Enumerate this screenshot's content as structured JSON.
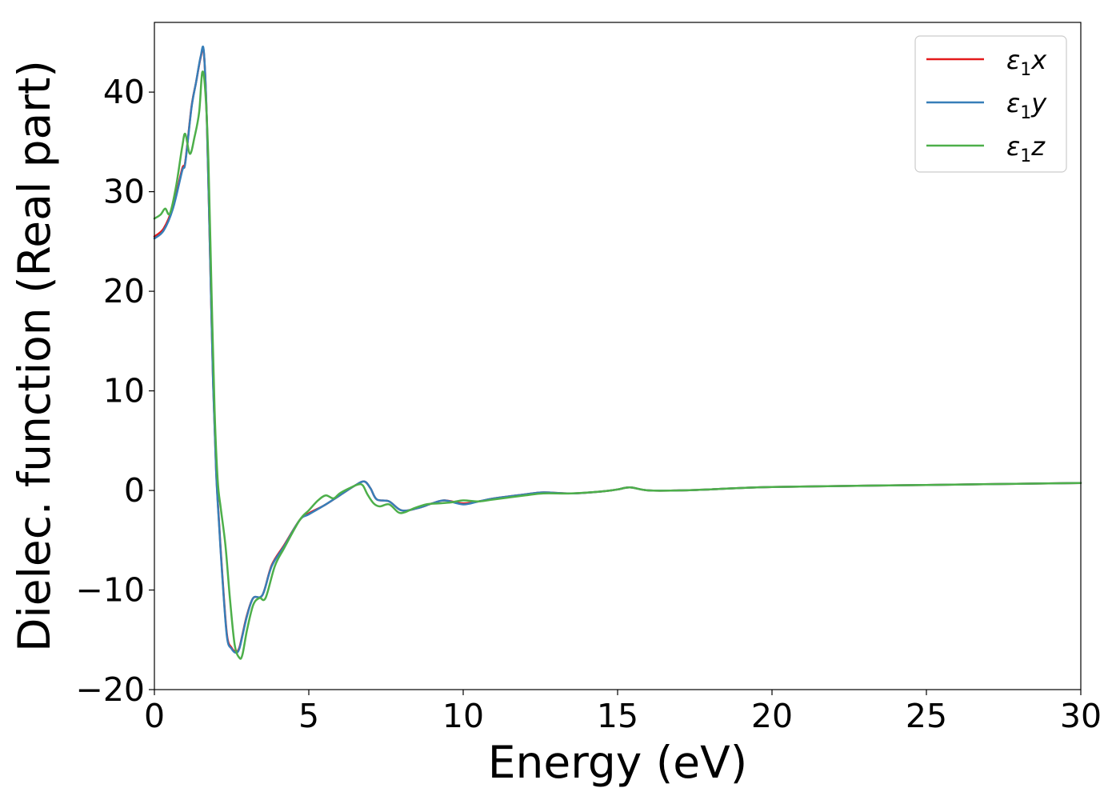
{
  "chart_data": {
    "type": "line",
    "title": "",
    "xlabel": "Energy (eV)",
    "ylabel": "Dielec. function (Real part)",
    "xlim": [
      0,
      30
    ],
    "ylim": [
      -20,
      47
    ],
    "x_ticks": [
      0,
      5,
      10,
      15,
      20,
      25,
      30
    ],
    "x_tick_labels": [
      "0",
      "5",
      "10",
      "15",
      "20",
      "25",
      "30"
    ],
    "y_ticks": [
      -20,
      -10,
      0,
      10,
      20,
      30,
      40
    ],
    "y_tick_labels": [
      "−20",
      "−10",
      "0",
      "10",
      "20",
      "30",
      "40"
    ],
    "grid": false,
    "legend_position": "top-right",
    "series": [
      {
        "name": "ε1x",
        "legend_base": "ε",
        "legend_sub": "1",
        "legend_suffix": "x",
        "color": "#e41a1c",
        "x": [
          0,
          0.3,
          0.6,
          0.9,
          1.0,
          1.2,
          1.35,
          1.5,
          1.6,
          1.7,
          1.8,
          1.9,
          2.0,
          2.1,
          2.2,
          2.35,
          2.5,
          2.65,
          2.75,
          2.85,
          3.0,
          3.2,
          3.5,
          3.8,
          4.2,
          4.7,
          5.0,
          5.5,
          6.0,
          6.5,
          6.8,
          7.0,
          7.2,
          7.6,
          8.0,
          8.5,
          9.0,
          9.4,
          10.0,
          10.5,
          11.0,
          12.0,
          12.6,
          13.5,
          14.5,
          15.0,
          15.4,
          16.0,
          17.0,
          18.0,
          20.0,
          25.0,
          30.0
        ],
        "y": [
          25.5,
          26.3,
          28.5,
          32.3,
          33.0,
          38.5,
          41.0,
          43.5,
          44.0,
          37.0,
          24.0,
          11.0,
          2.0,
          -3.5,
          -8.5,
          -14.5,
          -15.8,
          -16.2,
          -15.8,
          -14.5,
          -12.5,
          -10.8,
          -10.5,
          -7.5,
          -5.5,
          -3.0,
          -2.3,
          -1.5,
          -0.5,
          0.5,
          0.9,
          0.2,
          -0.9,
          -1.1,
          -2.0,
          -1.8,
          -1.3,
          -1.0,
          -1.3,
          -1.1,
          -0.8,
          -0.4,
          -0.2,
          -0.3,
          -0.1,
          0.1,
          0.3,
          0.0,
          0.0,
          0.1,
          0.35,
          0.55,
          0.75
        ]
      },
      {
        "name": "ε1y",
        "legend_base": "ε",
        "legend_sub": "1",
        "legend_suffix": "y",
        "color": "#377eb8",
        "x": [
          0,
          0.3,
          0.6,
          0.9,
          1.0,
          1.2,
          1.35,
          1.5,
          1.6,
          1.7,
          1.8,
          1.9,
          2.0,
          2.1,
          2.2,
          2.35,
          2.5,
          2.65,
          2.75,
          2.85,
          3.0,
          3.2,
          3.5,
          3.8,
          4.2,
          4.7,
          5.0,
          5.5,
          6.0,
          6.5,
          6.8,
          7.0,
          7.2,
          7.6,
          8.0,
          8.5,
          9.0,
          9.4,
          10.0,
          10.5,
          11.0,
          12.0,
          12.6,
          13.5,
          14.5,
          15.0,
          15.4,
          16.0,
          17.0,
          18.0,
          20.0,
          25.0,
          30.0
        ],
        "y": [
          25.3,
          26.1,
          28.3,
          32.1,
          32.9,
          38.4,
          41.0,
          43.6,
          44.1,
          37.0,
          24.0,
          10.8,
          1.8,
          -3.7,
          -8.7,
          -14.7,
          -15.9,
          -16.3,
          -15.9,
          -14.6,
          -12.6,
          -10.8,
          -10.5,
          -7.6,
          -5.6,
          -3.0,
          -2.4,
          -1.5,
          -0.5,
          0.5,
          0.9,
          0.2,
          -0.9,
          -1.1,
          -2.0,
          -1.8,
          -1.3,
          -1.0,
          -1.4,
          -1.1,
          -0.8,
          -0.4,
          -0.2,
          -0.3,
          -0.1,
          0.1,
          0.3,
          0.0,
          0.0,
          0.1,
          0.35,
          0.55,
          0.75
        ]
      },
      {
        "name": "ε1z",
        "legend_base": "ε",
        "legend_sub": "1",
        "legend_suffix": "z",
        "color": "#4daf4a",
        "x": [
          0,
          0.2,
          0.35,
          0.5,
          0.7,
          0.9,
          1.0,
          1.15,
          1.3,
          1.45,
          1.55,
          1.65,
          1.75,
          1.85,
          1.95,
          2.05,
          2.15,
          2.3,
          2.45,
          2.6,
          2.75,
          2.85,
          3.0,
          3.2,
          3.4,
          3.6,
          3.9,
          4.2,
          4.7,
          5.0,
          5.3,
          5.55,
          5.8,
          6.0,
          6.3,
          6.6,
          6.75,
          6.9,
          7.1,
          7.3,
          7.6,
          7.9,
          8.1,
          8.4,
          8.8,
          9.2,
          9.6,
          10.0,
          10.5,
          11.0,
          12.0,
          12.6,
          13.5,
          14.5,
          15.0,
          15.4,
          16.0,
          17.0,
          18.0,
          20.0,
          25.0,
          30.0
        ],
        "y": [
          27.3,
          27.7,
          28.3,
          27.8,
          30.5,
          34.5,
          35.8,
          33.8,
          35.5,
          38.0,
          42.0,
          40.0,
          33.0,
          20.0,
          8.0,
          1.0,
          -1.8,
          -5.5,
          -11.0,
          -15.5,
          -16.8,
          -16.5,
          -14.0,
          -11.5,
          -10.8,
          -10.8,
          -7.6,
          -5.8,
          -3.0,
          -2.0,
          -1.0,
          -0.5,
          -0.8,
          -0.3,
          0.2,
          0.6,
          0.5,
          -0.4,
          -1.3,
          -1.6,
          -1.4,
          -2.2,
          -2.2,
          -1.8,
          -1.4,
          -1.3,
          -1.2,
          -1.0,
          -1.1,
          -0.9,
          -0.5,
          -0.3,
          -0.3,
          -0.1,
          0.1,
          0.3,
          0.0,
          0.0,
          0.1,
          0.35,
          0.55,
          0.75
        ]
      }
    ]
  }
}
